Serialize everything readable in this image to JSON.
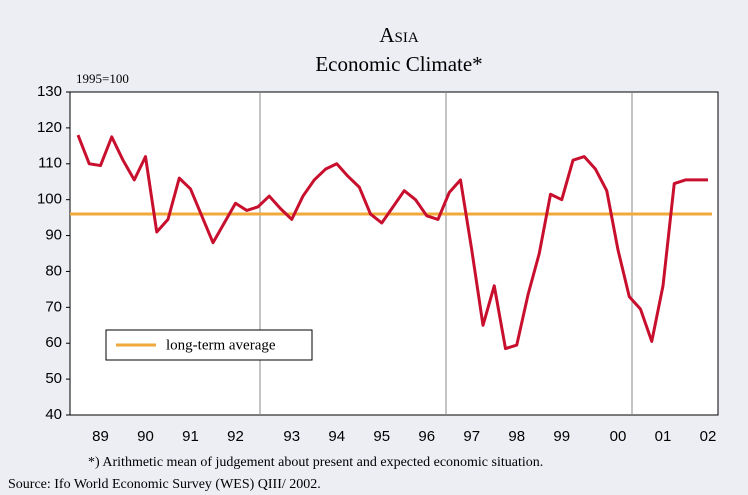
{
  "chart_data": {
    "type": "line",
    "title": "Asia",
    "subtitle": "Economic Climate*",
    "unit_note": "1995=100",
    "footnote": "*) Arithmetic mean of judgement about present and expected economic situation.",
    "source": "Source: Ifo World Economic Survey (WES) QIII/ 2002.",
    "categories": [
      null,
      null,
      "89",
      null,
      null,
      null,
      "90",
      null,
      null,
      null,
      "91",
      null,
      null,
      null,
      "92",
      null,
      null,
      null,
      null,
      "93",
      null,
      null,
      null,
      "94",
      null,
      null,
      null,
      "95",
      null,
      null,
      null,
      "96",
      null,
      null,
      null,
      "97",
      null,
      null,
      null,
      "98",
      null,
      null,
      null,
      "99",
      null,
      null,
      null,
      null,
      "00",
      null,
      null,
      null,
      "01",
      null,
      null,
      null,
      "02"
    ],
    "series": [
      {
        "name": "Economic Climate",
        "color": "#c8102e",
        "values": [
          118,
          110,
          109.5,
          117.5,
          111,
          105.5,
          112,
          91,
          94.5,
          106,
          103,
          95.5,
          88,
          93.5,
          99,
          97,
          98,
          101,
          97.5,
          94.5,
          101,
          105.5,
          108.5,
          110,
          106.5,
          103.5,
          96,
          93.5,
          98,
          102.5,
          100,
          95.5,
          94.5,
          102,
          105.5,
          86,
          65,
          76,
          58.5,
          59.5,
          73.5,
          85,
          101.5,
          100,
          111,
          112,
          108.5,
          102.5,
          86,
          73,
          69.5,
          60.5,
          76,
          104.5,
          105.5,
          105.5,
          105.5
        ]
      }
    ],
    "average": {
      "name": "long-term average",
      "value": 96,
      "color": "#f2a93b"
    },
    "ylim": [
      40,
      130
    ],
    "yticks": [
      40,
      50,
      60,
      70,
      80,
      90,
      100,
      110,
      120,
      130
    ]
  }
}
